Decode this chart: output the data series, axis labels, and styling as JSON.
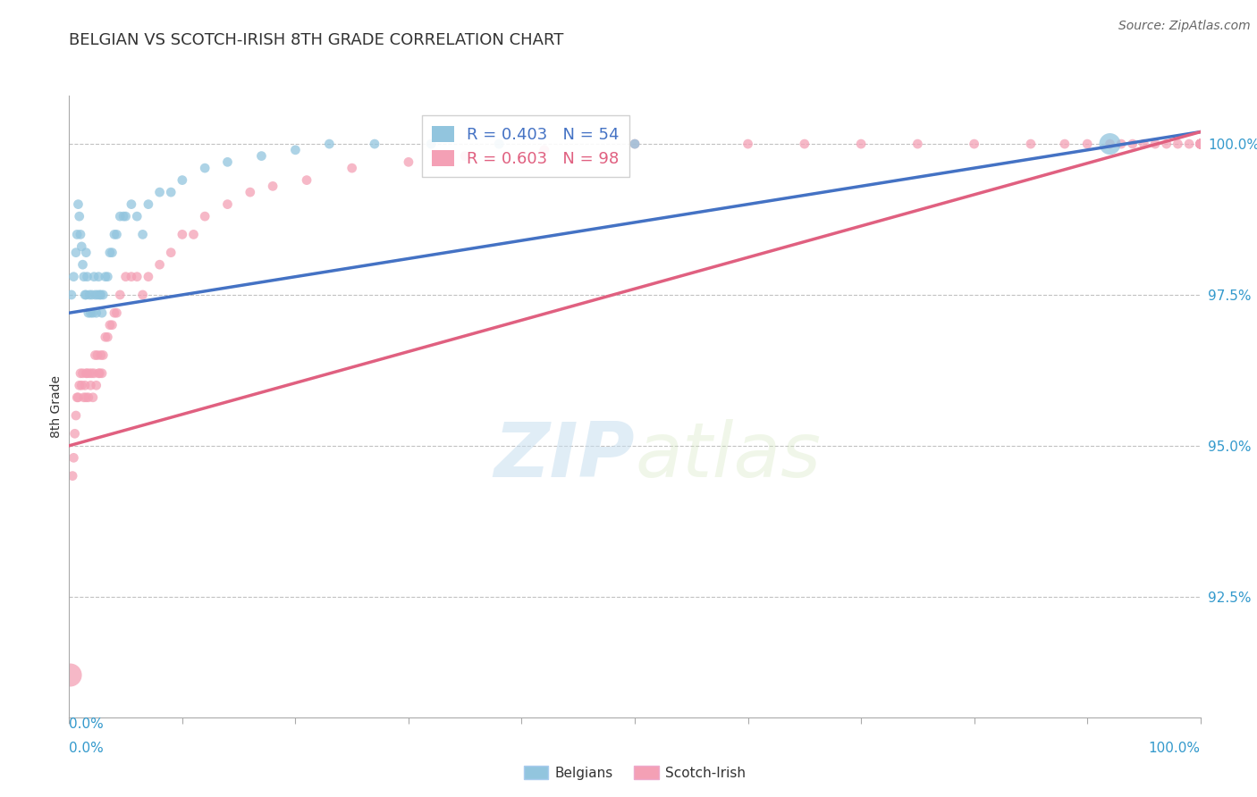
{
  "title": "BELGIAN VS SCOTCH-IRISH 8TH GRADE CORRELATION CHART",
  "source_text": "Source: ZipAtlas.com",
  "ylabel": "8th Grade",
  "ylabel_color": "#333333",
  "x_axis_range": [
    0.0,
    1.0
  ],
  "y_axis_range": [
    0.905,
    1.008
  ],
  "y_ticks": [
    0.925,
    0.95,
    0.975,
    1.0
  ],
  "y_tick_labels": [
    "92.5%",
    "95.0%",
    "97.5%",
    "100.0%"
  ],
  "watermark_zip": "ZIP",
  "watermark_atlas": "atlas",
  "legend_R_belgian": "R = 0.403",
  "legend_N_belgian": "N = 54",
  "legend_R_scotch": "R = 0.603",
  "legend_N_scotch": "N = 98",
  "belgian_color": "#92c5de",
  "scotch_color": "#f4a0b5",
  "belgian_line_color": "#4472c4",
  "scotch_line_color": "#e06080",
  "belgian_scatter_x": [
    0.002,
    0.004,
    0.006,
    0.007,
    0.008,
    0.009,
    0.01,
    0.011,
    0.012,
    0.013,
    0.014,
    0.015,
    0.015,
    0.016,
    0.017,
    0.018,
    0.019,
    0.02,
    0.021,
    0.022,
    0.023,
    0.024,
    0.025,
    0.026,
    0.027,
    0.028,
    0.029,
    0.03,
    0.032,
    0.034,
    0.036,
    0.038,
    0.04,
    0.042,
    0.045,
    0.048,
    0.05,
    0.055,
    0.06,
    0.065,
    0.07,
    0.08,
    0.09,
    0.1,
    0.12,
    0.14,
    0.17,
    0.2,
    0.23,
    0.27,
    0.32,
    0.38,
    0.5,
    0.92
  ],
  "belgian_scatter_y": [
    0.975,
    0.978,
    0.982,
    0.985,
    0.99,
    0.988,
    0.985,
    0.983,
    0.98,
    0.978,
    0.975,
    0.982,
    0.975,
    0.978,
    0.972,
    0.975,
    0.972,
    0.975,
    0.972,
    0.978,
    0.975,
    0.972,
    0.975,
    0.978,
    0.975,
    0.975,
    0.972,
    0.975,
    0.978,
    0.978,
    0.982,
    0.982,
    0.985,
    0.985,
    0.988,
    0.988,
    0.988,
    0.99,
    0.988,
    0.985,
    0.99,
    0.992,
    0.992,
    0.994,
    0.996,
    0.997,
    0.998,
    0.999,
    1.0,
    1.0,
    1.0,
    1.0,
    1.0,
    1.0
  ],
  "belgian_scatter_sizes": [
    60,
    60,
    60,
    60,
    60,
    60,
    60,
    60,
    60,
    60,
    60,
    60,
    60,
    60,
    60,
    60,
    60,
    60,
    60,
    60,
    60,
    60,
    60,
    60,
    60,
    60,
    60,
    60,
    60,
    60,
    60,
    60,
    60,
    60,
    60,
    60,
    60,
    60,
    60,
    60,
    60,
    60,
    60,
    60,
    60,
    60,
    60,
    60,
    60,
    60,
    60,
    60,
    60,
    300
  ],
  "scotch_scatter_x": [
    0.001,
    0.003,
    0.004,
    0.005,
    0.006,
    0.007,
    0.008,
    0.009,
    0.01,
    0.011,
    0.012,
    0.013,
    0.014,
    0.015,
    0.015,
    0.016,
    0.017,
    0.018,
    0.019,
    0.02,
    0.021,
    0.022,
    0.023,
    0.024,
    0.025,
    0.026,
    0.027,
    0.028,
    0.029,
    0.03,
    0.032,
    0.034,
    0.036,
    0.038,
    0.04,
    0.042,
    0.045,
    0.05,
    0.055,
    0.06,
    0.065,
    0.07,
    0.08,
    0.09,
    0.1,
    0.11,
    0.12,
    0.14,
    0.16,
    0.18,
    0.21,
    0.25,
    0.3,
    0.35,
    0.42,
    0.5,
    0.6,
    0.65,
    0.7,
    0.75,
    0.8,
    0.85,
    0.88,
    0.9,
    0.92,
    0.93,
    0.94,
    0.95,
    0.96,
    0.97,
    0.98,
    0.99,
    1.0,
    1.0,
    1.0,
    1.0,
    1.0,
    1.0,
    1.0,
    1.0,
    1.0,
    1.0,
    1.0,
    1.0,
    1.0,
    1.0,
    1.0,
    1.0,
    1.0,
    1.0,
    1.0,
    1.0,
    1.0,
    1.0,
    1.0,
    1.0,
    1.0,
    1.0
  ],
  "scotch_scatter_y": [
    0.912,
    0.945,
    0.948,
    0.952,
    0.955,
    0.958,
    0.958,
    0.96,
    0.962,
    0.96,
    0.962,
    0.958,
    0.96,
    0.962,
    0.958,
    0.962,
    0.958,
    0.962,
    0.96,
    0.962,
    0.958,
    0.962,
    0.965,
    0.96,
    0.965,
    0.962,
    0.962,
    0.965,
    0.962,
    0.965,
    0.968,
    0.968,
    0.97,
    0.97,
    0.972,
    0.972,
    0.975,
    0.978,
    0.978,
    0.978,
    0.975,
    0.978,
    0.98,
    0.982,
    0.985,
    0.985,
    0.988,
    0.99,
    0.992,
    0.993,
    0.994,
    0.996,
    0.997,
    0.998,
    0.999,
    1.0,
    1.0,
    1.0,
    1.0,
    1.0,
    1.0,
    1.0,
    1.0,
    1.0,
    1.0,
    1.0,
    1.0,
    1.0,
    1.0,
    1.0,
    1.0,
    1.0,
    1.0,
    1.0,
    1.0,
    1.0,
    1.0,
    1.0,
    1.0,
    1.0,
    1.0,
    1.0,
    1.0,
    1.0,
    1.0,
    1.0,
    1.0,
    1.0,
    1.0,
    1.0,
    1.0,
    1.0,
    1.0,
    1.0,
    1.0,
    1.0,
    1.0,
    1.0
  ],
  "scotch_scatter_sizes": [
    350,
    60,
    60,
    60,
    60,
    60,
    60,
    60,
    60,
    60,
    60,
    60,
    60,
    60,
    60,
    60,
    60,
    60,
    60,
    60,
    60,
    60,
    60,
    60,
    60,
    60,
    60,
    60,
    60,
    60,
    60,
    60,
    60,
    60,
    60,
    60,
    60,
    60,
    60,
    60,
    60,
    60,
    60,
    60,
    60,
    60,
    60,
    60,
    60,
    60,
    60,
    60,
    60,
    60,
    60,
    60,
    60,
    60,
    60,
    60,
    60,
    60,
    60,
    60,
    60,
    60,
    60,
    60,
    60,
    60,
    60,
    60,
    60,
    60,
    60,
    60,
    60,
    60,
    60,
    60,
    60,
    60,
    60,
    60,
    60,
    60,
    60,
    60,
    60,
    60,
    60,
    60,
    60,
    60,
    60,
    60,
    60,
    60
  ],
  "background_color": "#ffffff",
  "grid_color": "#bbbbbb",
  "axis_color": "#aaaaaa",
  "title_color": "#333333",
  "title_fontsize": 13,
  "label_color": "#3399cc",
  "label_fontsize": 11,
  "source_color": "#666666",
  "source_fontsize": 10
}
